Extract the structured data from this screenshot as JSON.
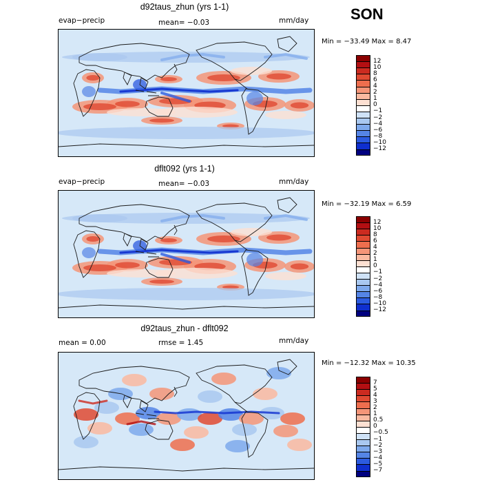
{
  "season": "SON",
  "colors": {
    "ocean_base": "#d6e8f8",
    "coast": "#1a1a1a",
    "low_end": "#000080",
    "high_end": "#7a0000"
  },
  "panels": [
    {
      "title": "d92taus_zhun (yrs 1-1)",
      "left_label": "evap−precip",
      "center_label": "mean=   −0.03",
      "units": "mm/day",
      "stats": "Min = −33.49  Max =    8.47",
      "colorbar_ticks": [
        "12",
        "10",
        "8",
        "6",
        "4",
        "2",
        "1",
        "0",
        "−1",
        "−2",
        "−4",
        "−6",
        "−8",
        "−10",
        "−12"
      ],
      "colorbar_colors": [
        "#8b0000",
        "#b30f12",
        "#cc2b20",
        "#e04a32",
        "#ee6e4e",
        "#f59578",
        "#fab9a0",
        "#fde0d2",
        "#ffffff",
        "#cfe2f7",
        "#a9c8f0",
        "#7ea9ec",
        "#5585e6",
        "#2c5be0",
        "#0f2fcf",
        "#000080"
      ]
    },
    {
      "title": "dflt092 (yrs 1-1)",
      "left_label": "evap−precip",
      "center_label": "mean=   −0.03",
      "units": "mm/day",
      "stats": "Min = −32.19  Max =    6.59",
      "colorbar_ticks": [
        "12",
        "10",
        "8",
        "6",
        "4",
        "2",
        "1",
        "0",
        "−1",
        "−2",
        "−4",
        "−6",
        "−8",
        "−10",
        "−12"
      ],
      "colorbar_colors": [
        "#8b0000",
        "#b30f12",
        "#cc2b20",
        "#e04a32",
        "#ee6e4e",
        "#f59578",
        "#fab9a0",
        "#fde0d2",
        "#ffffff",
        "#cfe2f7",
        "#a9c8f0",
        "#7ea9ec",
        "#5585e6",
        "#2c5be0",
        "#0f2fcf",
        "#000080"
      ]
    },
    {
      "title": "d92taus_zhun - dflt092",
      "left_label": "mean =     0.00",
      "center_label": "rmse =     1.45",
      "units": "mm/day",
      "stats": "Min = −12.32  Max =   10.35",
      "colorbar_ticks": [
        "7",
        "5",
        "4",
        "3",
        "2",
        "1",
        "0.5",
        "0",
        "−0.5",
        "−1",
        "−2",
        "−3",
        "−4",
        "−5",
        "−7"
      ],
      "colorbar_colors": [
        "#8b0000",
        "#b30f12",
        "#cc2b20",
        "#e04a32",
        "#ee6e4e",
        "#f59578",
        "#fab9a0",
        "#fde0d2",
        "#ffffff",
        "#cfe2f7",
        "#a9c8f0",
        "#7ea9ec",
        "#5585e6",
        "#2c5be0",
        "#0f2fcf",
        "#000080"
      ]
    }
  ],
  "chart_data": [
    {
      "type": "heatmap",
      "title": "d92taus_zhun (yrs 1-1)",
      "variable": "evap−precip",
      "units": "mm/day",
      "mean": -0.03,
      "min": -33.49,
      "max": 8.47,
      "levels": [
        -12,
        -10,
        -8,
        -6,
        -4,
        -2,
        -1,
        0,
        1,
        2,
        4,
        6,
        8,
        10,
        12
      ],
      "projection": "global cylindrical equidistant"
    },
    {
      "type": "heatmap",
      "title": "dflt092 (yrs 1-1)",
      "variable": "evap−precip",
      "units": "mm/day",
      "mean": -0.03,
      "min": -32.19,
      "max": 6.59,
      "levels": [
        -12,
        -10,
        -8,
        -6,
        -4,
        -2,
        -1,
        0,
        1,
        2,
        4,
        6,
        8,
        10,
        12
      ],
      "projection": "global cylindrical equidistant"
    },
    {
      "type": "heatmap",
      "title": "d92taus_zhun - dflt092",
      "units": "mm/day",
      "mean": 0.0,
      "rmse": 1.45,
      "min": -12.32,
      "max": 10.35,
      "levels": [
        -7,
        -5,
        -4,
        -3,
        -2,
        -1,
        -0.5,
        0,
        0.5,
        1,
        2,
        3,
        4,
        5,
        7
      ],
      "projection": "global cylindrical equidistant"
    }
  ]
}
